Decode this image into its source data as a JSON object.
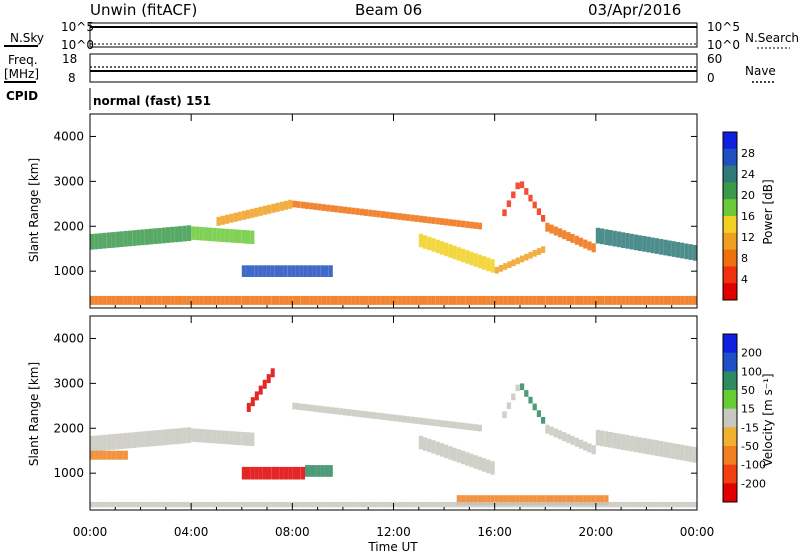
{
  "header": {
    "station": "Unwin (fitACF)",
    "beam": "Beam 06",
    "date": "03/Apr/2016"
  },
  "top_panels": {
    "nsky_label": "N.Sky",
    "nsearch_label": "N.Search",
    "nsky_ticks": [
      "10^5",
      "10^0"
    ],
    "freq_label_line1": "Freq.",
    "freq_label_line2": "[MHz]",
    "freq_ticks": [
      "18",
      "8"
    ],
    "nave_label": "Nave",
    "nave_ticks": [
      "60",
      "0"
    ],
    "cpid_label": "CPID",
    "cpid_value": "normal (fast) 151"
  },
  "colors": {
    "power_scale": [
      "#1020e0",
      "#1f4fc0",
      "#2e7a78",
      "#3a9a4a",
      "#6cc93a",
      "#f0d020",
      "#f0a020",
      "#f07010",
      "#f03010",
      "#e00000"
    ],
    "velocity_scale": [
      "#1020e0",
      "#2050c8",
      "#2e8a60",
      "#66cc33",
      "#c8c8c0",
      "#f0b030",
      "#f08020",
      "#f04010",
      "#e00000"
    ]
  },
  "chart_data": [
    {
      "type": "heatmap",
      "title": "Power",
      "xlabel": "",
      "ylabel": "Slant Range [km]",
      "xticks": [
        "00:00",
        "04:00",
        "08:00",
        "12:00",
        "16:00",
        "20:00",
        "00:00"
      ],
      "xlim_hours": [
        0,
        24
      ],
      "ylim_km": [
        180,
        4500
      ],
      "yticks": [
        1000,
        2000,
        3000,
        4000
      ],
      "colorbar_label": "Power [dB]",
      "colorbar_ticks": [
        "28",
        "24",
        "20",
        "16",
        "12",
        "8",
        "4"
      ],
      "bands": [
        {
          "from": 0.0,
          "to": 4.0,
          "range_start": 1650,
          "range_end": 1850,
          "thickness": 350,
          "power": 20
        },
        {
          "from": 4.0,
          "to": 6.5,
          "range_start": 1850,
          "range_end": 1750,
          "thickness": 300,
          "power": 18
        },
        {
          "from": 6.0,
          "to": 9.6,
          "range_start": 1000,
          "range_end": 1000,
          "thickness": 260,
          "power": 28
        },
        {
          "from": 5.0,
          "to": 8.0,
          "range_start": 2100,
          "range_end": 2500,
          "thickness": 200,
          "power": 10
        },
        {
          "from": 8.0,
          "to": 15.5,
          "range_start": 2500,
          "range_end": 2000,
          "thickness": 150,
          "power": 8
        },
        {
          "from": 13.0,
          "to": 16.0,
          "range_start": 1700,
          "range_end": 1100,
          "thickness": 300,
          "power": 14
        },
        {
          "from": 16.0,
          "to": 18.0,
          "range_start": 1000,
          "range_end": 1500,
          "thickness": 150,
          "power": 10
        },
        {
          "from": 16.3,
          "to": 17.0,
          "range_start": 2200,
          "range_end": 3000,
          "thickness": 150,
          "power": 6
        },
        {
          "from": 17.0,
          "to": 18.0,
          "range_start": 3000,
          "range_end": 2100,
          "thickness": 150,
          "power": 6
        },
        {
          "from": 18.0,
          "to": 20.0,
          "range_start": 2000,
          "range_end": 1500,
          "thickness": 200,
          "power": 8
        },
        {
          "from": 20.0,
          "to": 24.0,
          "range_start": 1800,
          "range_end": 1400,
          "thickness": 350,
          "power": 24
        },
        {
          "from": 0.0,
          "to": 24.0,
          "range_start": 350,
          "range_end": 350,
          "thickness": 200,
          "power": 8
        }
      ]
    },
    {
      "type": "heatmap",
      "title": "Velocity",
      "xlabel": "Time UT",
      "ylabel": "Slant Range [km]",
      "xticks": [
        "00:00",
        "04:00",
        "08:00",
        "12:00",
        "16:00",
        "20:00",
        "00:00"
      ],
      "xlim_hours": [
        0,
        24
      ],
      "ylim_km": [
        180,
        4500
      ],
      "yticks": [
        1000,
        2000,
        3000,
        4000
      ],
      "colorbar_label": "Velocity [m s⁻¹]",
      "colorbar_ticks": [
        "200",
        "100",
        "50",
        "15",
        "-15",
        "-50",
        "-100",
        "-200"
      ],
      "bands": [
        {
          "from": 0.0,
          "to": 4.0,
          "range_start": 1650,
          "range_end": 1850,
          "thickness": 350,
          "velocity": 0
        },
        {
          "from": 4.0,
          "to": 6.5,
          "range_start": 1850,
          "range_end": 1750,
          "thickness": 300,
          "velocity": 0
        },
        {
          "from": 6.0,
          "to": 8.5,
          "range_start": 1000,
          "range_end": 1000,
          "thickness": 280,
          "velocity": -200
        },
        {
          "from": 8.5,
          "to": 9.6,
          "range_start": 1050,
          "range_end": 1050,
          "thickness": 260,
          "velocity": 60
        },
        {
          "from": 6.2,
          "to": 7.3,
          "range_start": 2400,
          "range_end": 3300,
          "thickness": 200,
          "velocity": -200
        },
        {
          "from": 8.0,
          "to": 15.5,
          "range_start": 2500,
          "range_end": 2000,
          "thickness": 150,
          "velocity": 0
        },
        {
          "from": 13.0,
          "to": 16.0,
          "range_start": 1700,
          "range_end": 1100,
          "thickness": 300,
          "velocity": 0
        },
        {
          "from": 16.3,
          "to": 17.0,
          "range_start": 2200,
          "range_end": 3000,
          "thickness": 150,
          "velocity": 0
        },
        {
          "from": 17.0,
          "to": 18.0,
          "range_start": 3000,
          "range_end": 2100,
          "thickness": 150,
          "velocity": 40
        },
        {
          "from": 18.0,
          "to": 20.0,
          "range_start": 2000,
          "range_end": 1500,
          "thickness": 200,
          "velocity": 0
        },
        {
          "from": 20.0,
          "to": 24.0,
          "range_start": 1800,
          "range_end": 1400,
          "thickness": 350,
          "velocity": 0
        },
        {
          "from": 0.0,
          "to": 1.5,
          "range_start": 1400,
          "range_end": 1400,
          "thickness": 200,
          "velocity": -50
        },
        {
          "from": 14.5,
          "to": 20.5,
          "range_start": 400,
          "range_end": 400,
          "thickness": 220,
          "velocity": -50
        },
        {
          "from": 0.0,
          "to": 24.0,
          "range_start": 300,
          "range_end": 300,
          "thickness": 120,
          "velocity": 0
        }
      ]
    }
  ]
}
